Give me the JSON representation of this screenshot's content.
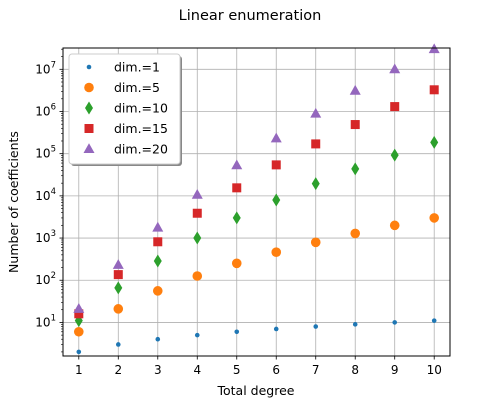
{
  "chart_data": {
    "type": "scatter",
    "title": "Linear enumeration",
    "xlabel": "Total degree",
    "ylabel": "Number of coefficients",
    "x": [
      1,
      2,
      3,
      4,
      5,
      6,
      7,
      8,
      9,
      10
    ],
    "xlim": [
      0.6,
      10.4
    ],
    "ylim": [
      1.6,
      32000000
    ],
    "yscale": "log",
    "grid": true,
    "legend_position": "top-left",
    "x_ticks": [
      "1",
      "2",
      "3",
      "4",
      "5",
      "6",
      "7",
      "8",
      "9",
      "10"
    ],
    "y_ticks": [
      {
        "value": 10,
        "base": "10",
        "exp": "1"
      },
      {
        "value": 100,
        "base": "10",
        "exp": "2"
      },
      {
        "value": 1000,
        "base": "10",
        "exp": "3"
      },
      {
        "value": 10000,
        "base": "10",
        "exp": "4"
      },
      {
        "value": 100000,
        "base": "10",
        "exp": "5"
      },
      {
        "value": 1000000,
        "base": "10",
        "exp": "6"
      },
      {
        "value": 10000000,
        "base": "10",
        "exp": "7"
      }
    ],
    "series": [
      {
        "name": "dim.=1",
        "marker": "circle-small",
        "color": "#1f77b4",
        "values": [
          2,
          3,
          4,
          5,
          6,
          7,
          8,
          9,
          10,
          11
        ]
      },
      {
        "name": "dim.=5",
        "marker": "circle",
        "color": "#ff7f0e",
        "values": [
          6,
          21,
          56,
          126,
          252,
          462,
          792,
          1287,
          2002,
          3003
        ]
      },
      {
        "name": "dim.=10",
        "marker": "thin-diamond",
        "color": "#2ca02c",
        "values": [
          11,
          66,
          286,
          1001,
          3003,
          8008,
          19448,
          43758,
          92378,
          184756
        ]
      },
      {
        "name": "dim.=15",
        "marker": "square",
        "color": "#d62728",
        "values": [
          16,
          136,
          816,
          3876,
          15504,
          54264,
          170544,
          490314,
          1307504,
          3268760
        ]
      },
      {
        "name": "dim.=20",
        "marker": "triangle-up",
        "color": "#9467bd",
        "values": [
          21,
          231,
          1771,
          10626,
          53130,
          230230,
          888030,
          3108105,
          10015005,
          30045015
        ]
      }
    ]
  }
}
